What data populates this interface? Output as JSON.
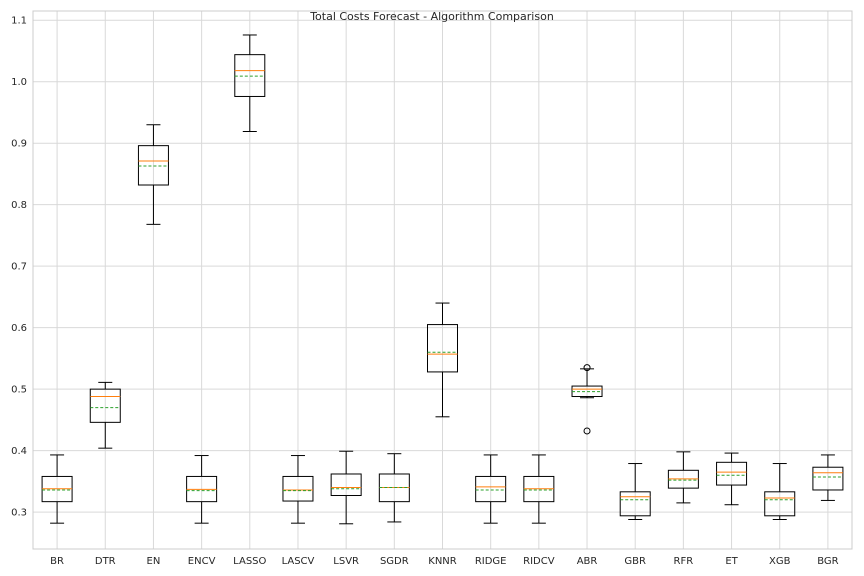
{
  "chart_data": {
    "type": "box",
    "title": "Total Costs Forecast - Algorithm Comparison",
    "xlabel": "",
    "ylabel": "",
    "ylim": [
      0.24,
      1.115
    ],
    "yticks": [
      0.3,
      0.4,
      0.5,
      0.6,
      0.7,
      0.8,
      0.9,
      1.0,
      1.1
    ],
    "ytick_labels": [
      "0.3",
      "0.4",
      "0.5",
      "0.6",
      "0.7",
      "0.8",
      "0.9",
      "1.0",
      "1.1"
    ],
    "grid": true,
    "colors": {
      "box": "#000000",
      "median": "#ff7f0e",
      "mean": "#2ca02c",
      "grid": "#d9d9d9",
      "axes": "#cccccc",
      "text": "#262626"
    },
    "boxes": [
      {
        "label": "BR",
        "whisker_low": 0.282,
        "q1": 0.317,
        "median": 0.338,
        "mean": 0.336,
        "q3": 0.358,
        "whisker_high": 0.393,
        "outliers": []
      },
      {
        "label": "DTR",
        "whisker_low": 0.404,
        "q1": 0.446,
        "median": 0.488,
        "mean": 0.47,
        "q3": 0.5,
        "whisker_high": 0.511,
        "outliers": []
      },
      {
        "label": "EN",
        "whisker_low": 0.768,
        "q1": 0.832,
        "median": 0.871,
        "mean": 0.863,
        "q3": 0.896,
        "whisker_high": 0.93,
        "outliers": []
      },
      {
        "label": "ENCV",
        "whisker_low": 0.282,
        "q1": 0.317,
        "median": 0.337,
        "mean": 0.335,
        "q3": 0.358,
        "whisker_high": 0.392,
        "outliers": []
      },
      {
        "label": "LASSO",
        "whisker_low": 0.919,
        "q1": 0.976,
        "median": 1.018,
        "mean": 1.009,
        "q3": 1.044,
        "whisker_high": 1.076,
        "outliers": []
      },
      {
        "label": "LASCV",
        "whisker_low": 0.282,
        "q1": 0.318,
        "median": 0.336,
        "mean": 0.335,
        "q3": 0.358,
        "whisker_high": 0.392,
        "outliers": []
      },
      {
        "label": "LSVR",
        "whisker_low": 0.281,
        "q1": 0.327,
        "median": 0.34,
        "mean": 0.338,
        "q3": 0.362,
        "whisker_high": 0.399,
        "outliers": []
      },
      {
        "label": "SGDR",
        "whisker_low": 0.284,
        "q1": 0.317,
        "median": 0.34,
        "mean": 0.34,
        "q3": 0.362,
        "whisker_high": 0.395,
        "outliers": []
      },
      {
        "label": "KNNR",
        "whisker_low": 0.455,
        "q1": 0.528,
        "median": 0.557,
        "mean": 0.56,
        "q3": 0.605,
        "whisker_high": 0.64,
        "outliers": []
      },
      {
        "label": "RIDGE",
        "whisker_low": 0.282,
        "q1": 0.317,
        "median": 0.341,
        "mean": 0.336,
        "q3": 0.358,
        "whisker_high": 0.393,
        "outliers": []
      },
      {
        "label": "RIDCV",
        "whisker_low": 0.282,
        "q1": 0.317,
        "median": 0.338,
        "mean": 0.336,
        "q3": 0.358,
        "whisker_high": 0.393,
        "outliers": []
      },
      {
        "label": "ABR",
        "whisker_low": 0.486,
        "q1": 0.488,
        "median": 0.5,
        "mean": 0.496,
        "q3": 0.505,
        "whisker_high": 0.533,
        "outliers": [
          0.432,
          0.535
        ]
      },
      {
        "label": "GBR",
        "whisker_low": 0.288,
        "q1": 0.294,
        "median": 0.325,
        "mean": 0.32,
        "q3": 0.333,
        "whisker_high": 0.379,
        "outliers": []
      },
      {
        "label": "RFR",
        "whisker_low": 0.315,
        "q1": 0.339,
        "median": 0.354,
        "mean": 0.352,
        "q3": 0.368,
        "whisker_high": 0.398,
        "outliers": []
      },
      {
        "label": "ET",
        "whisker_low": 0.312,
        "q1": 0.344,
        "median": 0.365,
        "mean": 0.36,
        "q3": 0.381,
        "whisker_high": 0.396,
        "outliers": []
      },
      {
        "label": "XGB",
        "whisker_low": 0.288,
        "q1": 0.294,
        "median": 0.323,
        "mean": 0.32,
        "q3": 0.333,
        "whisker_high": 0.379,
        "outliers": []
      },
      {
        "label": "BGR",
        "whisker_low": 0.319,
        "q1": 0.336,
        "median": 0.364,
        "mean": 0.357,
        "q3": 0.373,
        "whisker_high": 0.393,
        "outliers": []
      }
    ]
  }
}
